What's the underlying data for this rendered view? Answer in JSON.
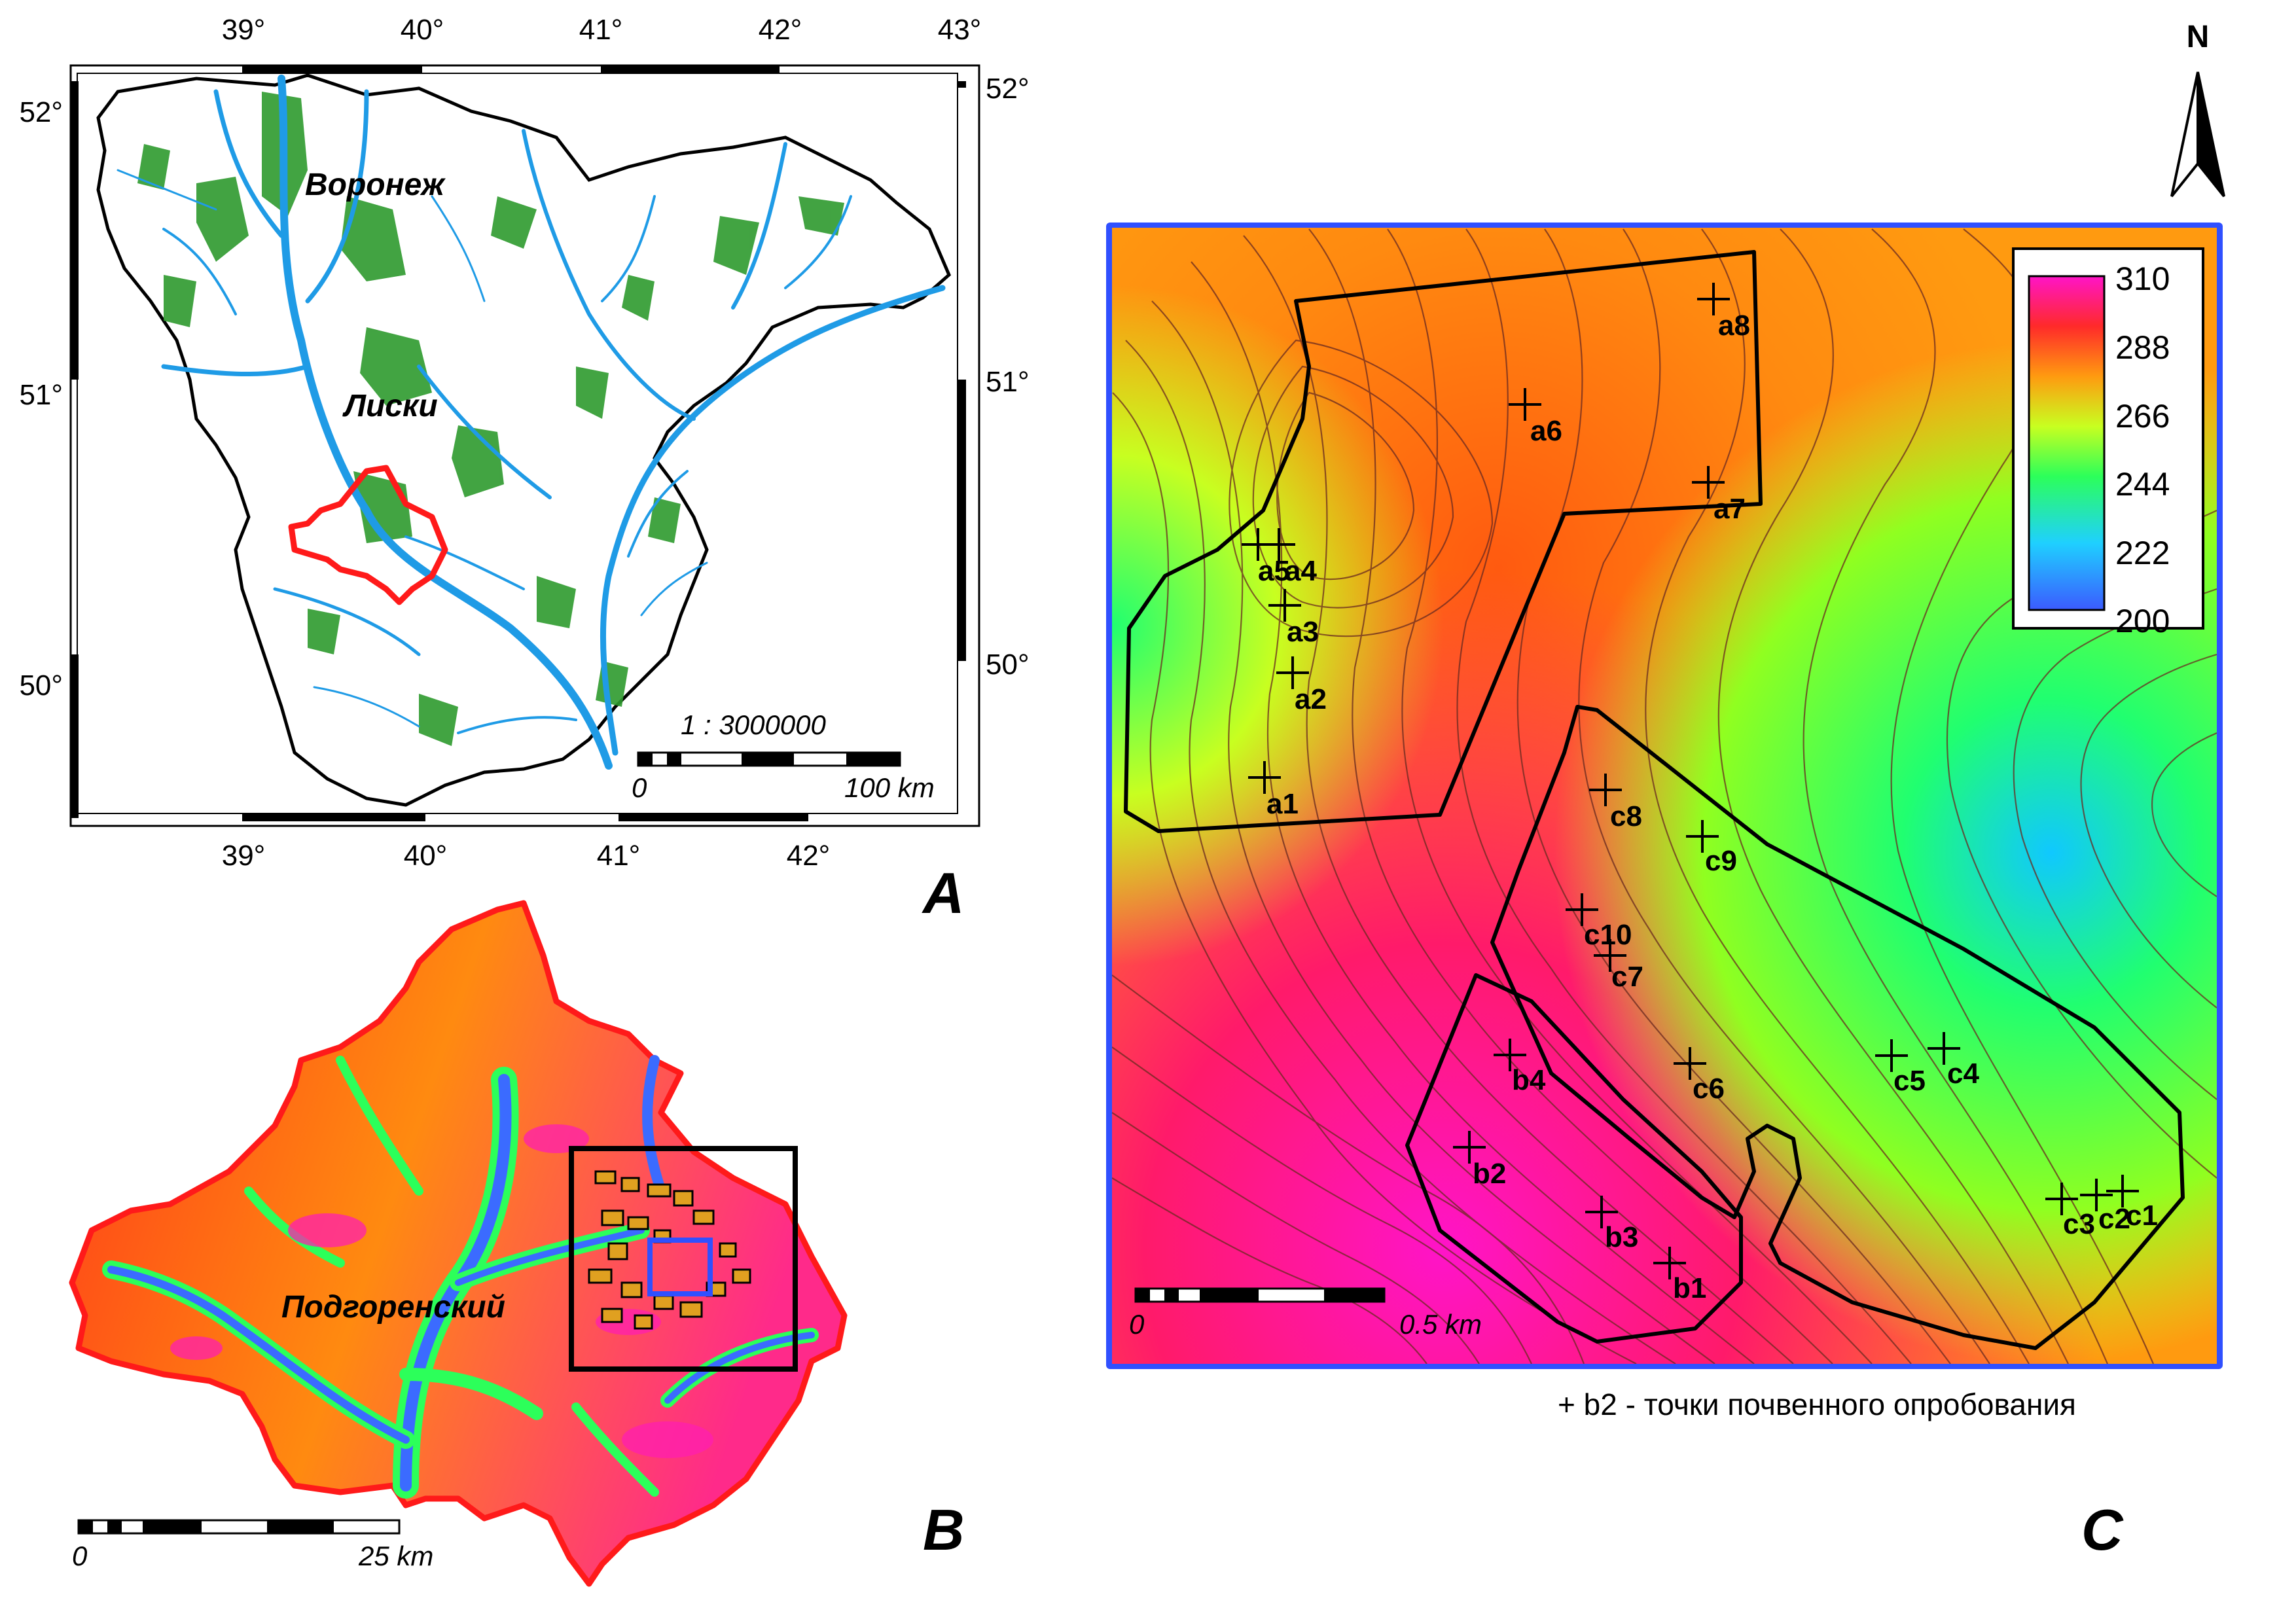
{
  "panelA": {
    "label": "A",
    "top_lon_ticks": [
      "39°",
      "40°",
      "41°",
      "42°",
      "43°"
    ],
    "bottom_lon_ticks": [
      "39°",
      "40°",
      "41°",
      "42°"
    ],
    "left_lat_ticks": [
      "52°",
      "51°",
      "50°"
    ],
    "right_lat_ticks": [
      "52°",
      "51°",
      "50°"
    ],
    "city_voronezh": "Воронеж",
    "city_liski": "Лиски",
    "scale_ratio": "1 : 3000000",
    "scale_start": "0",
    "scale_end": "100 km",
    "colors": {
      "rivers": "#1f9be6",
      "forest": "#2e9a2e",
      "study_area": "#ff1a1a"
    }
  },
  "panelB": {
    "label": "B",
    "district": "Подгоренский",
    "scale_start": "0",
    "scale_end": "25 km",
    "colors": {
      "low": "#2f6bff",
      "mid": "#3dff6a",
      "high": "#ff2a1a",
      "peak": "#ff1fb0",
      "outline": "#ff1a1a"
    }
  },
  "panelC": {
    "label": "C",
    "north_label": "N",
    "legend_values": [
      "310",
      "288",
      "266",
      "244",
      "222",
      "200"
    ],
    "scale_start": "0",
    "scale_end": "0.5 km",
    "caption": "+ b2 -  точки почвенного опробования",
    "frame_color": "#3050ff",
    "sample_points": [
      {
        "label": "a8"
      },
      {
        "label": "a6"
      },
      {
        "label": "a7"
      },
      {
        "label": "a5"
      },
      {
        "label": "a4"
      },
      {
        "label": "a3"
      },
      {
        "label": "a2"
      },
      {
        "label": "a1"
      },
      {
        "label": "c8"
      },
      {
        "label": "c9"
      },
      {
        "label": "c10"
      },
      {
        "label": "c7"
      },
      {
        "label": "b4"
      },
      {
        "label": "c6"
      },
      {
        "label": "c5"
      },
      {
        "label": "c4"
      },
      {
        "label": "b2"
      },
      {
        "label": "b3"
      },
      {
        "label": "b1"
      },
      {
        "label": "c3"
      },
      {
        "label": "c2"
      },
      {
        "label": "c1"
      }
    ]
  }
}
